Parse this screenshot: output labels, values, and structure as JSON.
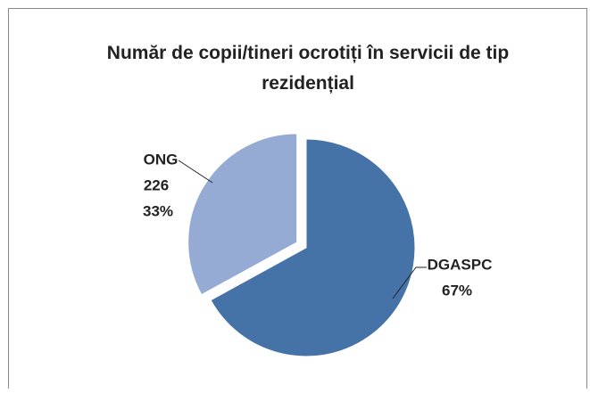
{
  "chart_data": {
    "type": "pie",
    "title": "Număr de copii/tineri ocrotiți în servicii de tip rezidențial",
    "categories": [
      "DGASPC",
      "ONG"
    ],
    "values": [
      67,
      33
    ],
    "value_labels": [
      "67%",
      "33%"
    ],
    "counts": [
      null,
      226
    ],
    "colors": [
      "#4573a7",
      "#95abd4"
    ]
  }
}
